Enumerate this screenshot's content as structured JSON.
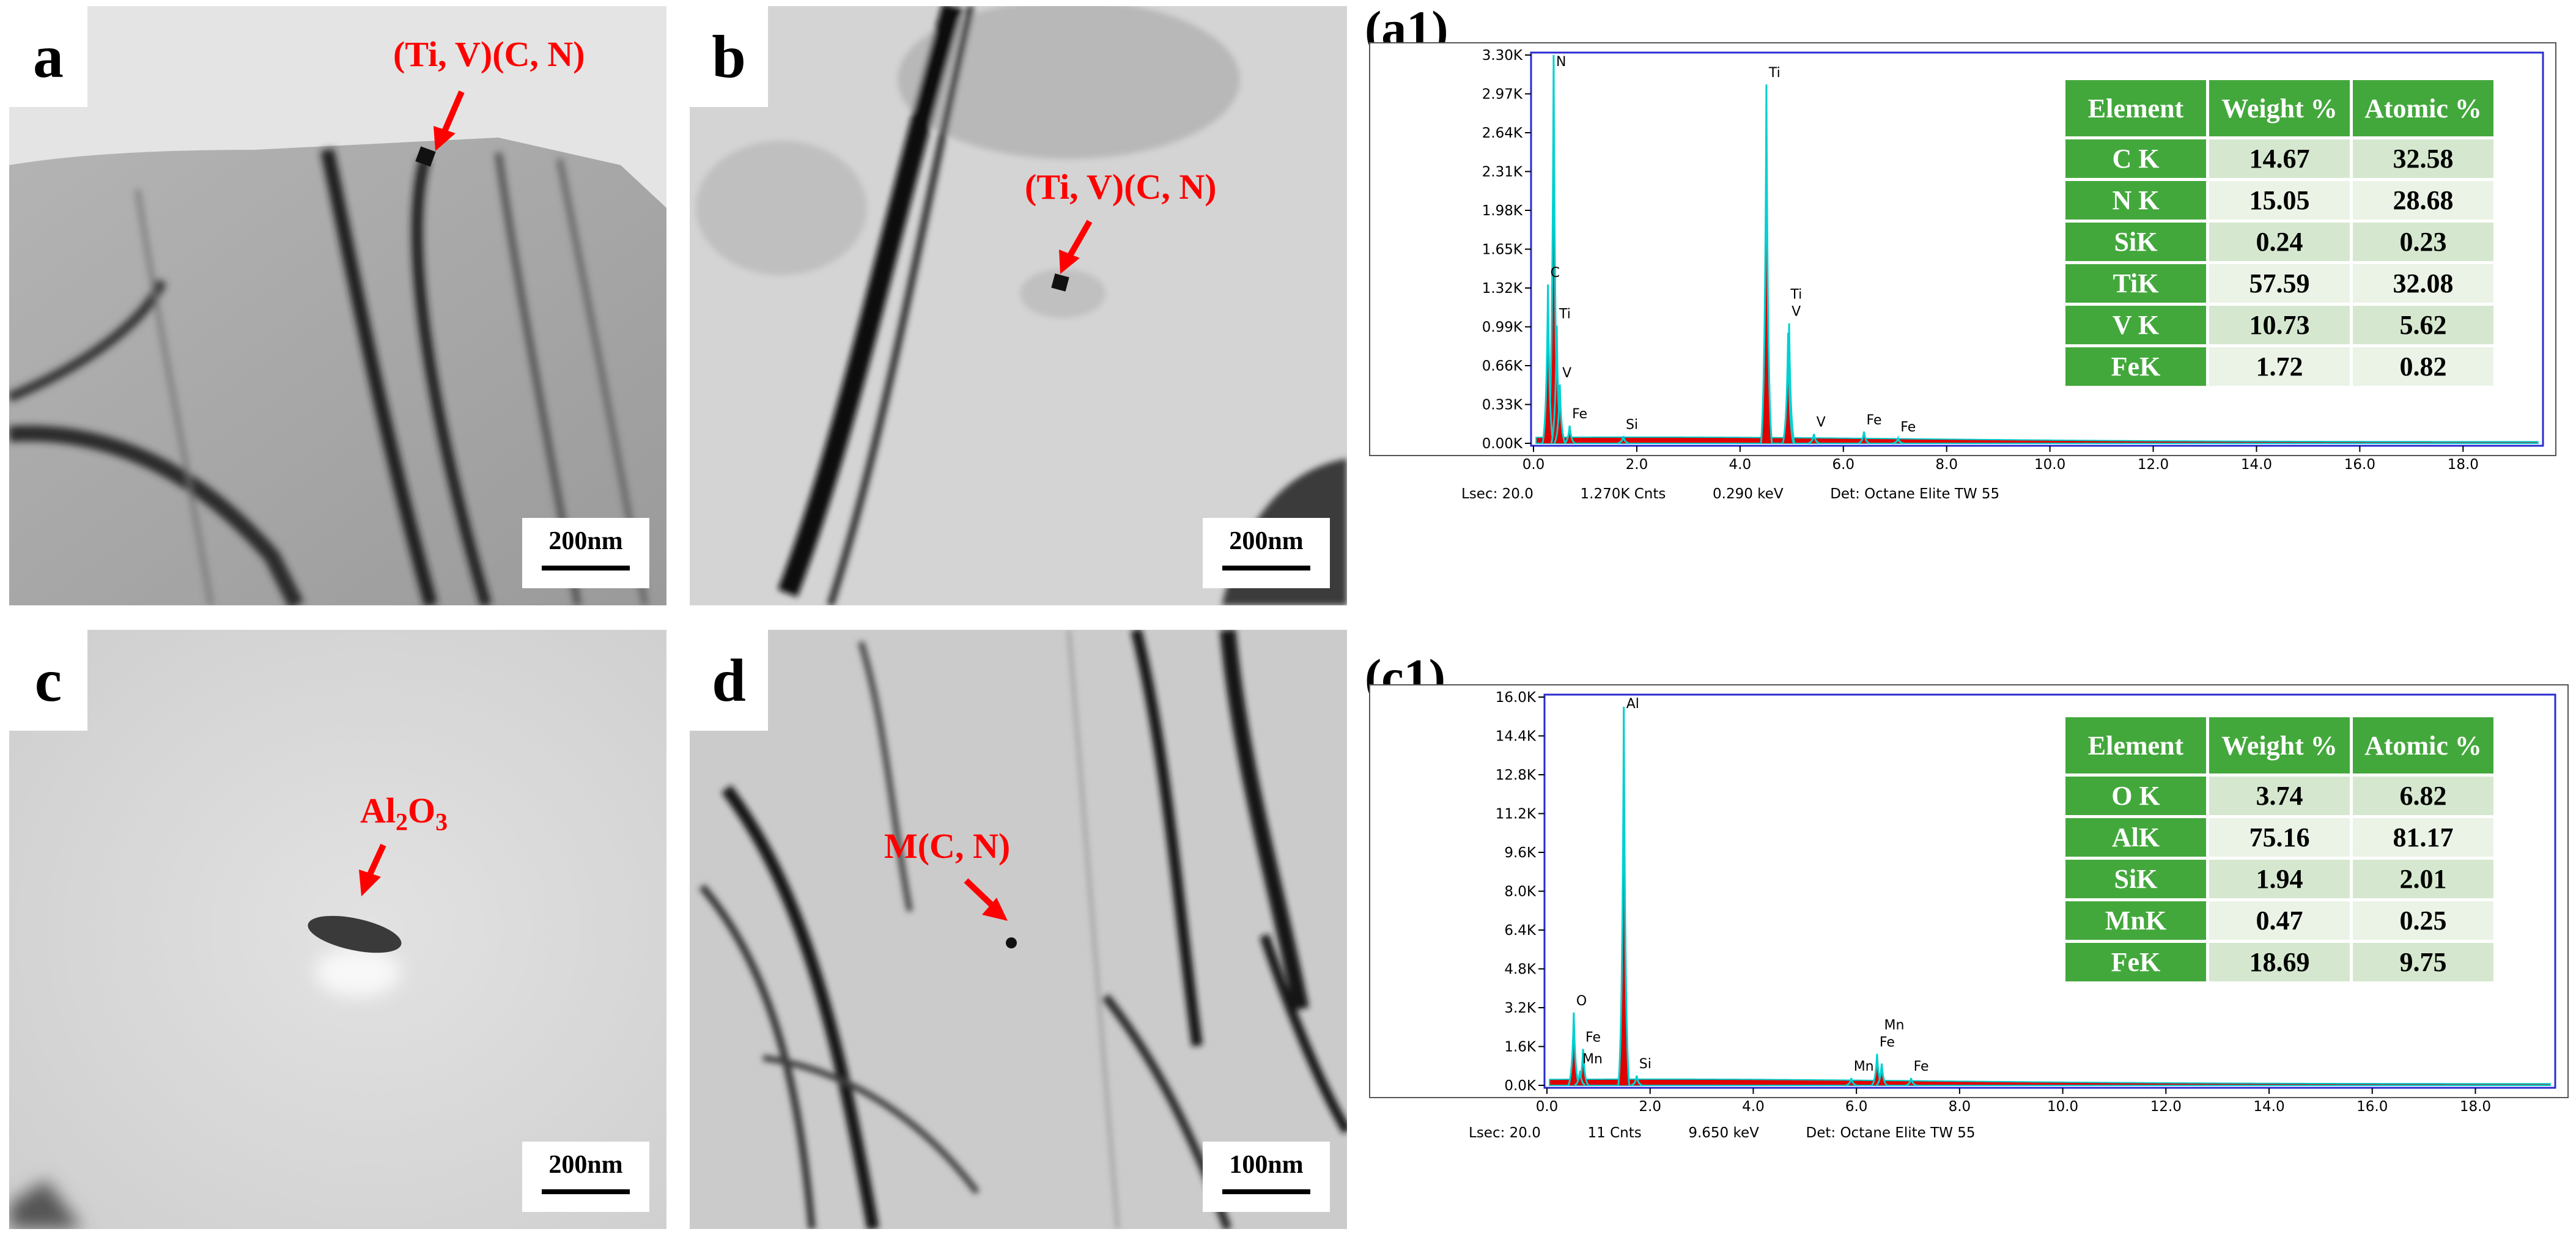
{
  "panels": {
    "a": {
      "label": "a",
      "scale": "200nm",
      "annotation": "(Ti, V)(C, N)"
    },
    "b": {
      "label": "b",
      "scale": "200nm",
      "annotation": "(Ti, V)(C, N)"
    },
    "c": {
      "label": "c",
      "scale": "200nm",
      "annotation_main": "Al",
      "annotation_sub1": "2",
      "annotation_mid": "O",
      "annotation_sub2": "3"
    },
    "d": {
      "label": "d",
      "scale": "100nm",
      "annotation": "M(C, N)"
    }
  },
  "chart_data": [
    {
      "type": "line",
      "id": "(a1)",
      "title": "",
      "xlabel": "",
      "ylabel": "",
      "x_ticks": [
        "0.0",
        "2.0",
        "4.0",
        "6.0",
        "8.0",
        "10.0",
        "12.0",
        "14.0",
        "16.0",
        "18.0"
      ],
      "y_ticks": [
        "0.00K",
        "0.33K",
        "0.66K",
        "0.99K",
        "1.32K",
        "1.65K",
        "1.98K",
        "2.31K",
        "2.64K",
        "2.97K",
        "3.30K"
      ],
      "xlim": [
        0,
        19.5
      ],
      "ylim": [
        0,
        3.3
      ],
      "peaks": [
        {
          "label": "N",
          "x": 0.39,
          "y": 3.3
        },
        {
          "label": "C",
          "x": 0.28,
          "y": 1.35
        },
        {
          "label": "Ti",
          "x": 0.45,
          "y": 1.0
        },
        {
          "label": "V",
          "x": 0.51,
          "y": 0.5
        },
        {
          "label": "Fe",
          "x": 0.7,
          "y": 0.15
        },
        {
          "label": "Si",
          "x": 1.74,
          "y": 0.06
        },
        {
          "label": "Ti",
          "x": 4.51,
          "y": 3.05
        },
        {
          "label": "V",
          "x": 4.95,
          "y": 1.02
        },
        {
          "label": "Ti",
          "x": 4.93,
          "y": 0.94
        },
        {
          "label": "V",
          "x": 5.43,
          "y": 0.08
        },
        {
          "label": "Fe",
          "x": 6.4,
          "y": 0.1
        },
        {
          "label": "Fe",
          "x": 7.06,
          "y": 0.04
        }
      ],
      "footer": {
        "lsec": "Lsec: 20.0",
        "counts": "1.270K Cnts",
        "kev": "0.290 keV",
        "det": "Det: Octane Elite TW 55"
      },
      "table": {
        "headers": [
          "Element",
          "Weight %",
          "Atomic %"
        ],
        "rows": [
          [
            "C K",
            "14.67",
            "32.58"
          ],
          [
            "N K",
            "15.05",
            "28.68"
          ],
          [
            "SiK",
            "0.24",
            "0.23"
          ],
          [
            "TiK",
            "57.59",
            "32.08"
          ],
          [
            "V K",
            "10.73",
            "5.62"
          ],
          [
            "FeK",
            "1.72",
            "0.82"
          ]
        ]
      }
    },
    {
      "type": "line",
      "id": "(c1)",
      "title": "",
      "xlabel": "",
      "ylabel": "",
      "x_ticks": [
        "0.0",
        "2.0",
        "4.0",
        "6.0",
        "8.0",
        "10.0",
        "12.0",
        "14.0",
        "16.0",
        "18.0"
      ],
      "y_ticks": [
        "0.0K",
        "1.6K",
        "3.2K",
        "4.8K",
        "6.4K",
        "8.0K",
        "9.6K",
        "11.2K",
        "12.8K",
        "14.4K",
        "16.0K"
      ],
      "xlim": [
        0,
        19.5
      ],
      "ylim": [
        0,
        16.0
      ],
      "peaks": [
        {
          "label": "O",
          "x": 0.52,
          "y": 3.0
        },
        {
          "label": "Fe",
          "x": 0.7,
          "y": 1.5
        },
        {
          "label": "Mn",
          "x": 0.64,
          "y": 0.6
        },
        {
          "label": "Al",
          "x": 1.49,
          "y": 15.6
        },
        {
          "label": "Si",
          "x": 1.74,
          "y": 0.4
        },
        {
          "label": "Mn",
          "x": 5.9,
          "y": 0.3
        },
        {
          "label": "Fe",
          "x": 6.4,
          "y": 1.3
        },
        {
          "label": "Mn",
          "x": 6.49,
          "y": 0.9
        },
        {
          "label": "Fe",
          "x": 7.06,
          "y": 0.3
        }
      ],
      "footer": {
        "lsec": "Lsec: 20.0",
        "counts": "11 Cnts",
        "kev": "9.650 keV",
        "det": "Det: Octane Elite TW 55"
      },
      "table": {
        "headers": [
          "Element",
          "Weight %",
          "Atomic %"
        ],
        "rows": [
          [
            "O K",
            "3.74",
            "6.82"
          ],
          [
            "AlK",
            "75.16",
            "81.17"
          ],
          [
            "SiK",
            "1.94",
            "2.01"
          ],
          [
            "MnK",
            "0.47",
            "0.25"
          ],
          [
            "FeK",
            "18.69",
            "9.75"
          ]
        ]
      }
    }
  ]
}
